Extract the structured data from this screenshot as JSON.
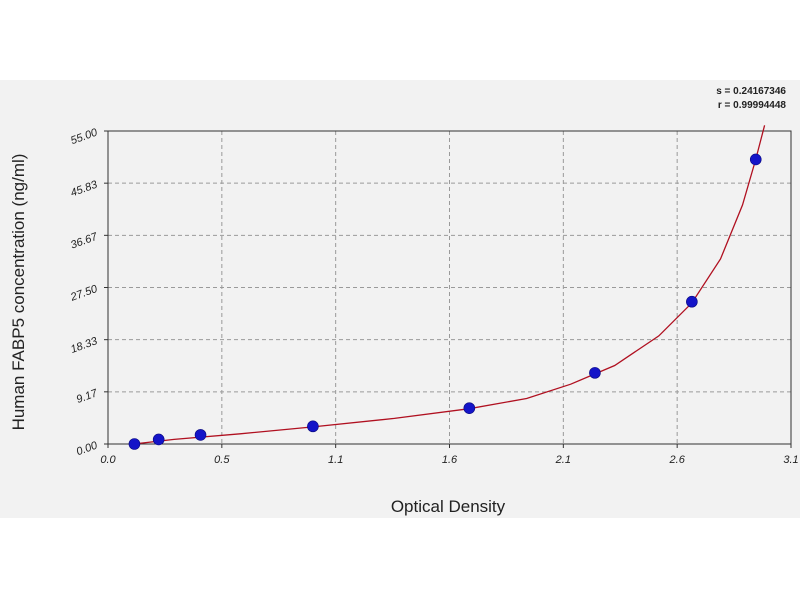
{
  "chart_data": {
    "type": "scatter",
    "xlabel": "Optical Density",
    "ylabel": "Human FABP5 concentration (ng/ml)",
    "x_ticks": [
      "0.0",
      "0.5",
      "1.1",
      "1.6",
      "2.1",
      "2.6",
      "3.1"
    ],
    "y_ticks": [
      "0.00",
      "9.17",
      "18.33",
      "27.50",
      "36.67",
      "45.83",
      "55.00"
    ],
    "xlim": [
      0.0,
      3.1
    ],
    "ylim": [
      0,
      55
    ],
    "grid": true,
    "stats": {
      "s": "s = 0.24167346",
      "r": "r = 0.99994448"
    },
    "series": [
      {
        "points": [
          {
            "x": 0.12,
            "y": 0.0
          },
          {
            "x": 0.23,
            "y": 0.8
          },
          {
            "x": 0.42,
            "y": 1.6
          },
          {
            "x": 0.93,
            "y": 3.1
          },
          {
            "x": 1.64,
            "y": 6.3
          },
          {
            "x": 2.21,
            "y": 12.5
          },
          {
            "x": 2.65,
            "y": 25.0
          },
          {
            "x": 2.94,
            "y": 50.0
          }
        ]
      }
    ],
    "fit_curve": [
      {
        "x": 0.05,
        "y": -0.3
      },
      {
        "x": 0.3,
        "y": 0.8
      },
      {
        "x": 0.6,
        "y": 1.8
      },
      {
        "x": 0.93,
        "y": 3.0
      },
      {
        "x": 1.3,
        "y": 4.5
      },
      {
        "x": 1.64,
        "y": 6.2
      },
      {
        "x": 1.9,
        "y": 8.0
      },
      {
        "x": 2.1,
        "y": 10.5
      },
      {
        "x": 2.3,
        "y": 13.8
      },
      {
        "x": 2.5,
        "y": 19.0
      },
      {
        "x": 2.65,
        "y": 24.8
      },
      {
        "x": 2.78,
        "y": 32.5
      },
      {
        "x": 2.88,
        "y": 42.0
      },
      {
        "x": 2.94,
        "y": 50.0
      },
      {
        "x": 2.98,
        "y": 56.0
      }
    ],
    "colors": {
      "point": "#1414c8",
      "curve": "#b01020",
      "grid": "#9a9a9a",
      "axis": "#333333"
    }
  }
}
